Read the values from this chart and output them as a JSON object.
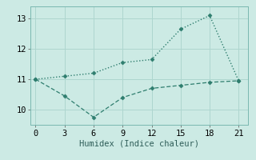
{
  "x": [
    0,
    3,
    6,
    9,
    12,
    15,
    18,
    21
  ],
  "line1_y": [
    11.0,
    11.1,
    11.2,
    11.55,
    11.65,
    12.65,
    13.1,
    10.95
  ],
  "line2_y": [
    11.0,
    10.45,
    9.75,
    10.4,
    10.7,
    10.8,
    10.9,
    10.95
  ],
  "line_color": "#2e7d6e",
  "bg_color": "#cceae4",
  "grid_color": "#aed6cf",
  "xlabel": "Humidex (Indice chaleur)",
  "xlim": [
    -0.5,
    22
  ],
  "ylim": [
    9.5,
    13.4
  ],
  "yticks": [
    10,
    11,
    12,
    13
  ],
  "xticks": [
    0,
    3,
    6,
    9,
    12,
    15,
    18,
    21
  ],
  "xlabel_fontsize": 7.5,
  "tick_fontsize": 7.5,
  "marker": "D",
  "markersize": 2.5
}
